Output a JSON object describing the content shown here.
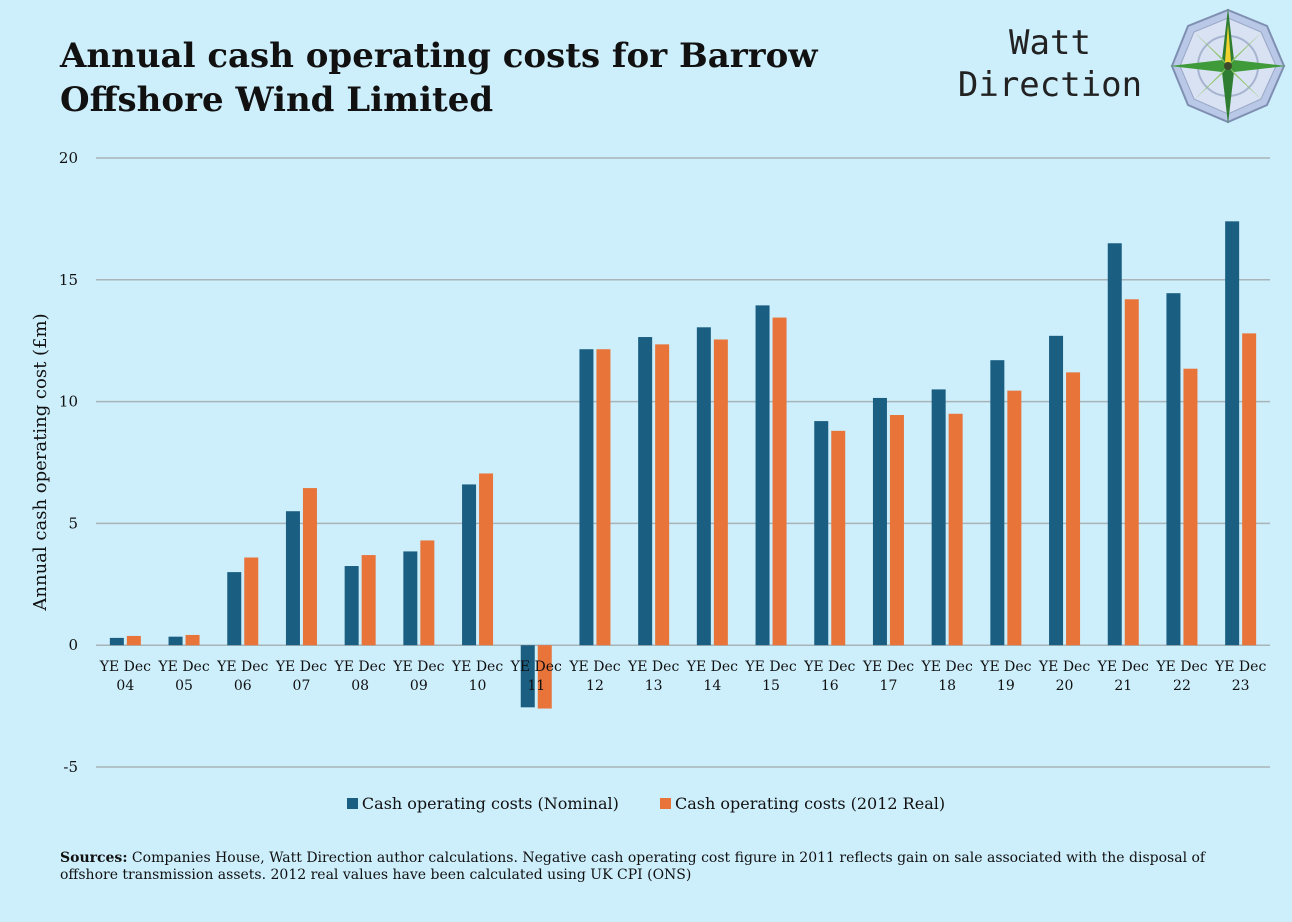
{
  "header": {
    "title": "Annual cash operating costs for Barrow Offshore Wind Limited",
    "brand_line1": "Watt",
    "brand_line2": "Direction"
  },
  "colors": {
    "background": "#cdeefb",
    "nominal": "#1a5e82",
    "real": "#e8743a",
    "grid": "#a9b4b8"
  },
  "chart_data": {
    "type": "bar",
    "title": "Annual cash operating costs for Barrow Offshore Wind Limited",
    "xlabel": "",
    "ylabel": "Annual cash operating cost (£m)",
    "ylim": [
      -5,
      20
    ],
    "yticks": [
      20,
      15,
      10,
      5,
      0,
      -5
    ],
    "grid": true,
    "legend_position": "bottom",
    "categories": [
      "YE Dec 04",
      "YE Dec 05",
      "YE Dec 06",
      "YE Dec 07",
      "YE Dec 08",
      "YE Dec 09",
      "YE Dec 10",
      "YE Dec 11",
      "YE Dec 12",
      "YE Dec 13",
      "YE Dec 14",
      "YE Dec 15",
      "YE Dec 16",
      "YE Dec 17",
      "YE Dec 18",
      "YE Dec 19",
      "YE Dec 20",
      "YE Dec 21",
      "YE Dec 22",
      "YE Dec 23"
    ],
    "category_lines": [
      [
        "YE Dec",
        "04"
      ],
      [
        "YE Dec",
        "05"
      ],
      [
        "YE Dec",
        "06"
      ],
      [
        "YE Dec",
        "07"
      ],
      [
        "YE Dec",
        "08"
      ],
      [
        "YE Dec",
        "09"
      ],
      [
        "YE Dec",
        "10"
      ],
      [
        "YE Dec",
        "11"
      ],
      [
        "YE Dec",
        "12"
      ],
      [
        "YE Dec",
        "13"
      ],
      [
        "YE Dec",
        "14"
      ],
      [
        "YE Dec",
        "15"
      ],
      [
        "YE Dec",
        "16"
      ],
      [
        "YE Dec",
        "17"
      ],
      [
        "YE Dec",
        "18"
      ],
      [
        "YE Dec",
        "19"
      ],
      [
        "YE Dec",
        "20"
      ],
      [
        "YE Dec",
        "21"
      ],
      [
        "YE Dec",
        "22"
      ],
      [
        "YE Dec",
        "23"
      ]
    ],
    "series": [
      {
        "name": "Cash operating costs (Nominal)",
        "values": [
          0.3,
          0.35,
          3.0,
          5.5,
          3.25,
          3.85,
          6.6,
          -2.55,
          12.15,
          12.65,
          13.05,
          13.95,
          9.2,
          10.15,
          10.5,
          11.7,
          12.7,
          16.5,
          14.45,
          17.4
        ]
      },
      {
        "name": "Cash operating costs (2012 Real)",
        "values": [
          0.38,
          0.42,
          3.6,
          6.45,
          3.7,
          4.3,
          7.05,
          -2.6,
          12.15,
          12.35,
          12.55,
          13.45,
          8.8,
          9.45,
          9.5,
          10.45,
          11.2,
          14.2,
          11.35,
          12.8
        ]
      }
    ]
  },
  "legend": {
    "nominal_label": "Cash operating costs (Nominal)",
    "real_label": "Cash operating costs (2012 Real)"
  },
  "sources": {
    "label": "Sources:",
    "text": " Companies House, Watt Direction author calculations. Negative cash operating cost figure in  2011 reflects gain on sale associated with the disposal of offshore transmission assets. 2012 real values have been calculated using UK CPI (ONS)"
  }
}
